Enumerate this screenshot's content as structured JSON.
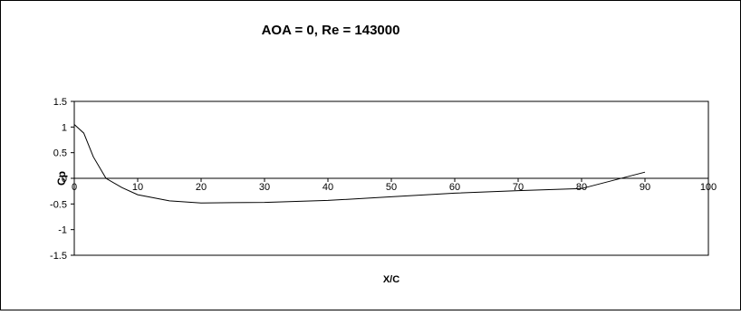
{
  "chart_data": {
    "type": "line",
    "title": "AOA = 0, Re = 143000",
    "xlabel": "X/C",
    "ylabel": "Cp",
    "xlim": [
      0,
      100
    ],
    "ylim": [
      -1.5,
      1.5
    ],
    "x_ticks": [
      0,
      10,
      20,
      30,
      40,
      50,
      60,
      70,
      80,
      90,
      100
    ],
    "y_ticks": [
      1.5,
      1,
      0.5,
      0,
      -0.5,
      -1,
      -1.5
    ],
    "x_tick_labels": [
      "0",
      "10",
      "20",
      "30",
      "40",
      "50",
      "60",
      "70",
      "80",
      "90",
      "100"
    ],
    "y_tick_labels": [
      "1.5",
      "1",
      "0.5",
      "0",
      "-0.5",
      "-1",
      "-1.5"
    ],
    "grid": false,
    "legend": "none",
    "series": [
      {
        "color": "#000000",
        "x": [
          0,
          1.5,
          3,
          5,
          7.5,
          10,
          15,
          20,
          30,
          40,
          50,
          60,
          70,
          80,
          90
        ],
        "y": [
          1.05,
          0.88,
          0.42,
          0.0,
          -0.18,
          -0.32,
          -0.44,
          -0.48,
          -0.47,
          -0.43,
          -0.36,
          -0.29,
          -0.24,
          -0.2,
          0.12
        ]
      }
    ]
  }
}
